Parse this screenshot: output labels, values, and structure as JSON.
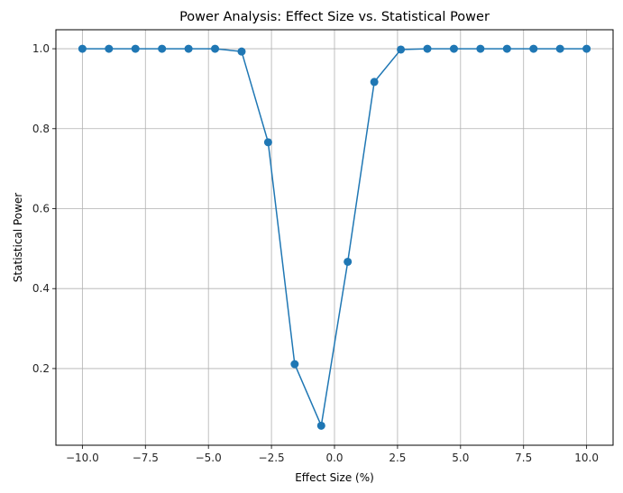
{
  "chart_data": {
    "type": "line",
    "title": "Power Analysis: Effect Size vs. Statistical Power",
    "xlabel": "Effect Size (%)",
    "ylabel": "Statistical Power",
    "xlim": [
      -11.05,
      11.05
    ],
    "ylim": [
      0.0082,
      1.0475
    ],
    "x_ticks": [
      -10.0,
      -7.5,
      -5.0,
      -2.5,
      0.0,
      2.5,
      5.0,
      7.5,
      10.0
    ],
    "x_tick_labels": [
      "−10.0",
      "−7.5",
      "−5.0",
      "−2.5",
      "0.0",
      "2.5",
      "5.0",
      "7.5",
      "10.0"
    ],
    "y_ticks": [
      0.2,
      0.4,
      0.6,
      0.8,
      1.0
    ],
    "y_tick_labels": [
      "0.2",
      "0.4",
      "0.6",
      "0.8",
      "1.0"
    ],
    "grid": true,
    "legend": "none",
    "series": [
      {
        "color": "#1f77b4",
        "marker": "circle",
        "x": [
          -10.0,
          -8.947,
          -7.895,
          -6.842,
          -5.789,
          -4.737,
          -3.684,
          -2.632,
          -1.579,
          -0.526,
          0.526,
          1.579,
          2.632,
          3.684,
          4.737,
          5.789,
          6.842,
          7.895,
          8.947,
          10.0
        ],
        "y": [
          1.0,
          1.0,
          1.0,
          1.0,
          1.0,
          1.0,
          0.993,
          0.766,
          0.211,
          0.057,
          0.467,
          0.917,
          0.998,
          1.0,
          1.0,
          1.0,
          1.0,
          1.0,
          1.0,
          1.0
        ]
      }
    ]
  }
}
